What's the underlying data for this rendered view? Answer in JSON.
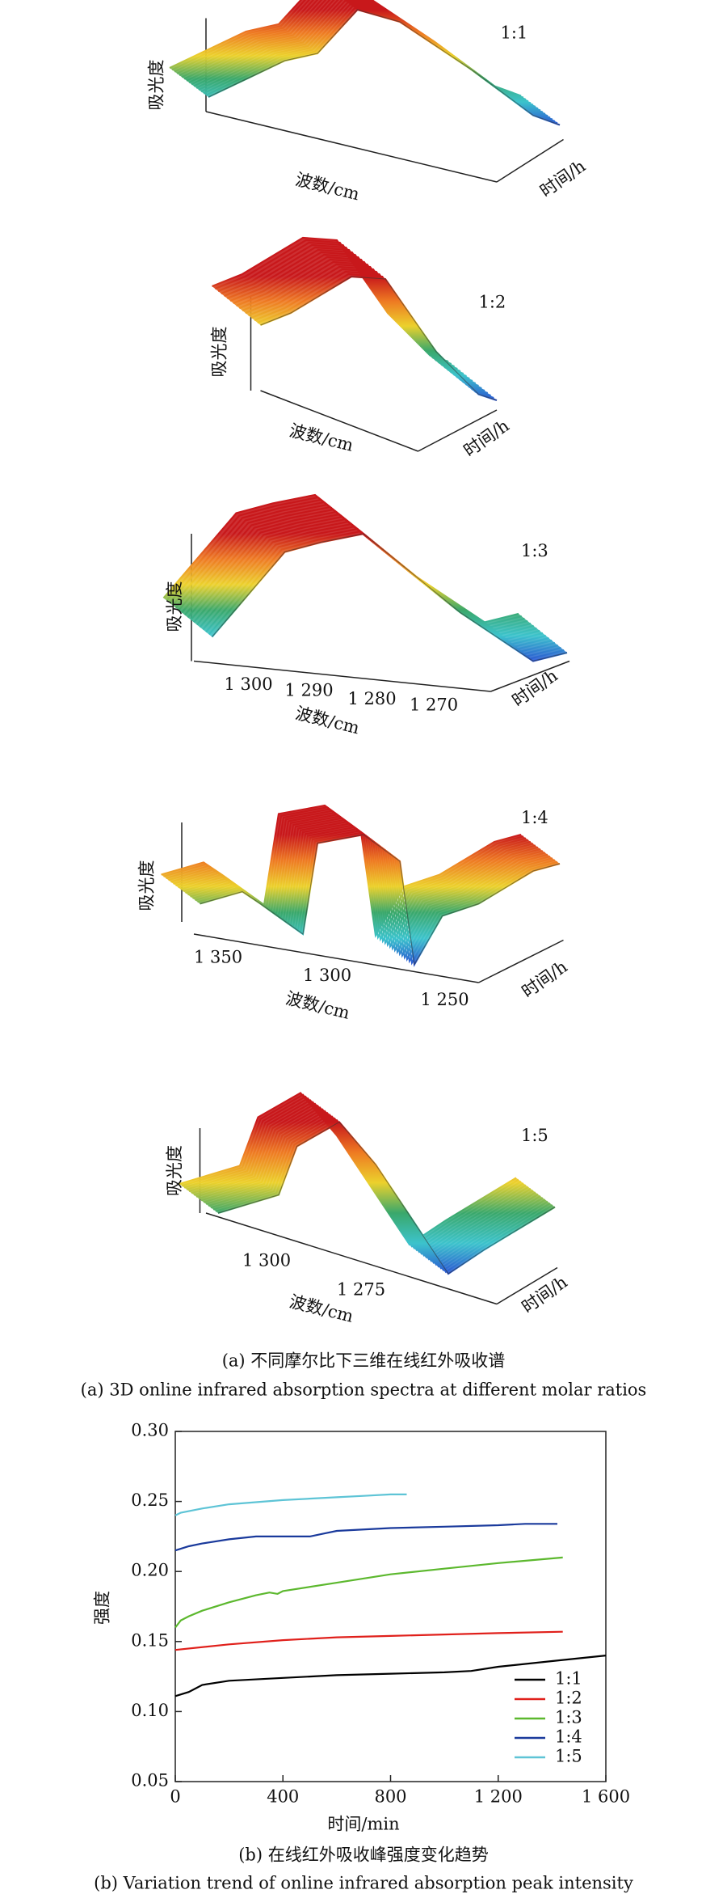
{
  "panel_a": {
    "caption_cn": "(a) 不同摩尔比下三维在线红外吸收谱",
    "caption_en": "(a) 3D online infrared absorption spectra at different molar ratios",
    "plots": [
      {
        "ratio": "1:1",
        "ylabel": "吸光度",
        "xlabel": "波数/cm",
        "tlabel": "时间/h",
        "ticks": []
      },
      {
        "ratio": "1:2",
        "ylabel": "吸光度",
        "xlabel": "波数/cm",
        "tlabel": "时间/h",
        "ticks": []
      },
      {
        "ratio": "1:3",
        "ylabel": "吸光度",
        "xlabel": "波数/cm",
        "tlabel": "时间/h",
        "ticks": [
          "1 300",
          "1 290",
          "1 280",
          "1 270"
        ]
      },
      {
        "ratio": "1:4",
        "ylabel": "吸光度",
        "xlabel": "波数/cm",
        "tlabel": "时间/h",
        "ticks": [
          "1 350",
          "1 300",
          "1 250"
        ]
      },
      {
        "ratio": "1:5",
        "ylabel": "吸光度",
        "xlabel": "波数/cm",
        "tlabel": "时间/h",
        "ticks": [
          "1 300",
          "1 275"
        ]
      }
    ]
  },
  "chart_data": {
    "type": "line",
    "caption_cn": "(b) 在线红外吸收峰强度变化趋势",
    "caption_en": "(b) Variation trend of online infrared absorption peak intensity",
    "xlabel": "时间/min",
    "ylabel": "强度",
    "xlim": [
      0,
      1600
    ],
    "xticks": [
      0,
      400,
      800,
      {
        "value": 1200,
        "label": "1 200"
      },
      {
        "value": 1600,
        "label": "1 600"
      }
    ],
    "ylim": [
      0.05,
      0.3
    ],
    "yticks": [
      0.05,
      {
        "value": 0.1,
        "label": "0.10"
      },
      0.15,
      {
        "value": 0.2,
        "label": "0.20"
      },
      0.25,
      {
        "value": 0.3,
        "label": "0.30"
      }
    ],
    "legend": "lower right",
    "series": [
      {
        "name": "1:1",
        "color": "#000000",
        "x": [
          0,
          50,
          100,
          200,
          400,
          600,
          800,
          1000,
          1100,
          1200,
          1400,
          1600
        ],
        "values": [
          0.111,
          0.114,
          0.119,
          0.122,
          0.124,
          0.126,
          0.127,
          0.128,
          0.129,
          0.132,
          0.136,
          0.14
        ]
      },
      {
        "name": "1:2",
        "color": "#e0201b",
        "x": [
          0,
          200,
          400,
          600,
          800,
          1000,
          1200,
          1440
        ],
        "values": [
          0.144,
          0.148,
          0.151,
          0.153,
          0.154,
          0.155,
          0.156,
          0.157
        ]
      },
      {
        "name": "1:3",
        "color": "#5cb82e",
        "x": [
          0,
          20,
          50,
          100,
          200,
          300,
          350,
          380,
          400,
          600,
          800,
          1000,
          1200,
          1440
        ],
        "values": [
          0.16,
          0.165,
          0.168,
          0.172,
          0.178,
          0.183,
          0.185,
          0.184,
          0.186,
          0.192,
          0.198,
          0.202,
          0.206,
          0.21
        ]
      },
      {
        "name": "1:4",
        "color": "#1a3a9c",
        "x": [
          0,
          50,
          100,
          200,
          300,
          400,
          500,
          550,
          600,
          800,
          1000,
          1200,
          1300,
          1420
        ],
        "values": [
          0.215,
          0.218,
          0.22,
          0.223,
          0.225,
          0.225,
          0.225,
          0.227,
          0.229,
          0.231,
          0.232,
          0.233,
          0.234,
          0.234
        ]
      },
      {
        "name": "1:5",
        "color": "#5ec4d6",
        "x": [
          0,
          20,
          100,
          200,
          400,
          600,
          700,
          800,
          860
        ],
        "values": [
          0.24,
          0.242,
          0.245,
          0.248,
          0.251,
          0.253,
          0.254,
          0.255,
          0.255
        ]
      }
    ]
  }
}
